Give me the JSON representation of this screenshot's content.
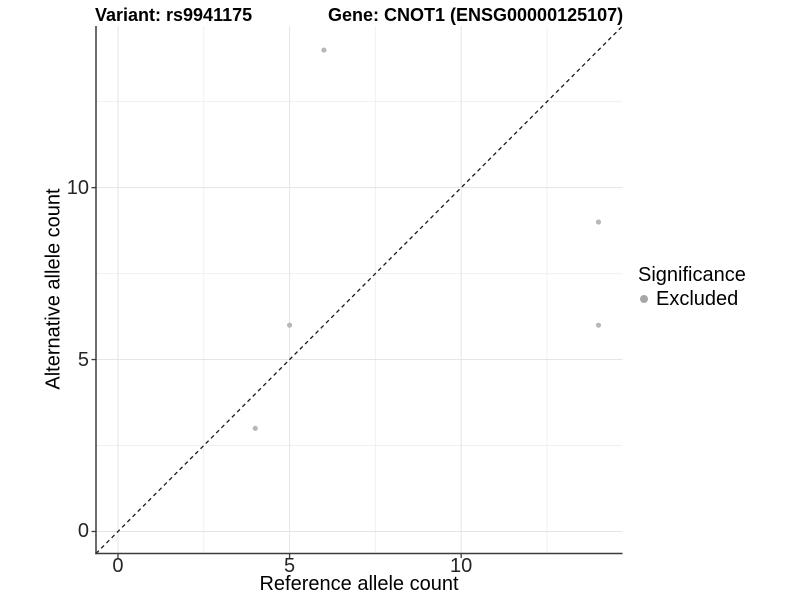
{
  "titles": {
    "left": "Variant: rs9941175",
    "right": "Gene: CNOT1 (ENSG00000125107)"
  },
  "axes": {
    "x": {
      "label": "Reference allele count",
      "tick_values": [
        0,
        5,
        10
      ],
      "tick_labels": [
        "0",
        "5",
        "10"
      ]
    },
    "y": {
      "label": "Alternative allele count",
      "tick_values": [
        0,
        5,
        10
      ],
      "tick_labels": [
        "0",
        "5",
        "10"
      ]
    }
  },
  "legend": {
    "title": "Significance",
    "items": [
      {
        "label": "Excluded",
        "color": "#a6a6a6"
      }
    ]
  },
  "chart_data": {
    "type": "scatter",
    "title": "Variant: rs9941175 / Gene: CNOT1 (ENSG00000125107)",
    "xlabel": "Reference allele count",
    "ylabel": "Alternative allele count",
    "xlim": [
      -0.64,
      14.7
    ],
    "ylim": [
      -0.64,
      14.7
    ],
    "grid": {
      "major": [
        0,
        5,
        10
      ],
      "minor": [
        2.5,
        7.5,
        12.5
      ],
      "on": true
    },
    "legend_position": "right",
    "series": [
      {
        "name": "Excluded",
        "color": "#b8b8b8",
        "points": [
          [
            4,
            3
          ],
          [
            5,
            6
          ],
          [
            6,
            14
          ],
          [
            14,
            6
          ],
          [
            14,
            9
          ]
        ]
      }
    ],
    "reference_line": {
      "type": "identity y=x",
      "style": "dashed",
      "color": "#1a1a1a"
    }
  },
  "colors": {
    "grid_major": "#e5e5e5",
    "grid_minor": "#f0f0f0",
    "axis_line": "#3c3c3c",
    "point": "#b8b8b8",
    "background": "#ffffff"
  }
}
